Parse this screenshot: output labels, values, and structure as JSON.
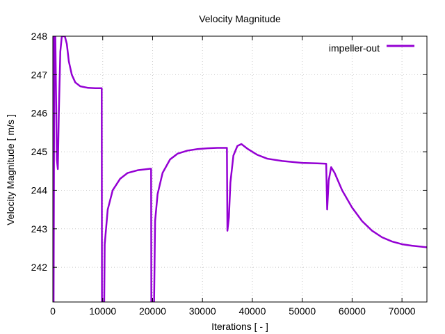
{
  "chart_data": {
    "type": "line",
    "title": "Velocity Magnitude",
    "xlabel": "Iterations [ - ]",
    "ylabel": "Velocity Magnitude [ m/s ]",
    "xlim": [
      0,
      75000
    ],
    "ylim": [
      241.1,
      248
    ],
    "xticks": [
      0,
      10000,
      20000,
      30000,
      40000,
      50000,
      60000,
      70000
    ],
    "yticks": [
      242,
      243,
      244,
      245,
      246,
      247,
      248
    ],
    "grid": true,
    "legend_position": "top-right",
    "series": [
      {
        "name": "impeller-out",
        "color": "#9400d3",
        "points": [
          [
            0,
            248
          ],
          [
            150,
            241.1
          ],
          [
            300,
            248
          ],
          [
            500,
            248
          ],
          [
            800,
            244.8
          ],
          [
            1000,
            244.55
          ],
          [
            1200,
            246.0
          ],
          [
            1500,
            247.6
          ],
          [
            1800,
            248
          ],
          [
            2400,
            248
          ],
          [
            2800,
            247.8
          ],
          [
            3200,
            247.35
          ],
          [
            3800,
            247.0
          ],
          [
            4500,
            246.8
          ],
          [
            5500,
            246.7
          ],
          [
            7000,
            246.66
          ],
          [
            8500,
            246.65
          ],
          [
            9800,
            246.65
          ],
          [
            9850,
            241.1
          ],
          [
            10300,
            241.1
          ],
          [
            10400,
            242.6
          ],
          [
            11000,
            243.5
          ],
          [
            12000,
            244.0
          ],
          [
            13500,
            244.3
          ],
          [
            15000,
            244.45
          ],
          [
            17000,
            244.52
          ],
          [
            19500,
            244.56
          ],
          [
            19700,
            244.56
          ],
          [
            19750,
            241.1
          ],
          [
            20300,
            241.1
          ],
          [
            20500,
            243.2
          ],
          [
            21000,
            243.9
          ],
          [
            22000,
            244.45
          ],
          [
            23500,
            244.8
          ],
          [
            25000,
            244.95
          ],
          [
            27000,
            245.03
          ],
          [
            29000,
            245.07
          ],
          [
            31000,
            245.09
          ],
          [
            33000,
            245.1
          ],
          [
            34900,
            245.1
          ],
          [
            35000,
            242.95
          ],
          [
            35300,
            243.3
          ],
          [
            35600,
            244.2
          ],
          [
            36200,
            244.9
          ],
          [
            37000,
            245.15
          ],
          [
            37800,
            245.2
          ],
          [
            39000,
            245.08
          ],
          [
            41000,
            244.92
          ],
          [
            43000,
            244.82
          ],
          [
            46000,
            244.76
          ],
          [
            50000,
            244.71
          ],
          [
            53000,
            244.7
          ],
          [
            54800,
            244.69
          ],
          [
            55000,
            243.5
          ],
          [
            55300,
            244.25
          ],
          [
            55800,
            244.6
          ],
          [
            56500,
            244.45
          ],
          [
            58000,
            244.0
          ],
          [
            60000,
            243.55
          ],
          [
            62000,
            243.2
          ],
          [
            64000,
            242.95
          ],
          [
            66000,
            242.78
          ],
          [
            68000,
            242.67
          ],
          [
            70000,
            242.6
          ],
          [
            72000,
            242.56
          ],
          [
            75000,
            242.52
          ]
        ]
      }
    ]
  }
}
